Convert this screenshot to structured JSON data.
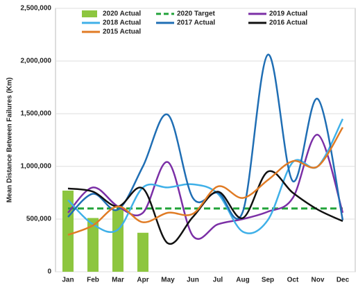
{
  "chart_data": {
    "type": "combo",
    "y_label": "Mean Distance Between Failures (Km)",
    "categories": [
      "Jan",
      "Feb",
      "Mar",
      "Apr",
      "May",
      "Jun",
      "Jul",
      "Aug",
      "Sep",
      "Oct",
      "Nov",
      "Dec"
    ],
    "ylim": [
      0,
      2500000
    ],
    "yticks": [
      0,
      {
        "value": 500000,
        "label": "500,000"
      },
      {
        "value": 1000000,
        "label": "1,000,000"
      },
      {
        "value": 1500000,
        "label": "1,500,000"
      },
      {
        "value": 2000000,
        "label": "2,000,000"
      },
      {
        "value": 2500000,
        "label": "2,500,000"
      }
    ],
    "grid": true,
    "legend": "top",
    "series": [
      {
        "name": "2020 Actual",
        "style": "bar",
        "color": "#8dc63f",
        "values": [
          770000,
          510000,
          590000,
          370000,
          null,
          null,
          null,
          null,
          null,
          null,
          null,
          null
        ]
      },
      {
        "name": "2020 Target",
        "style": "dashed",
        "color": "#22a33a",
        "values": [
          600000,
          600000,
          600000,
          600000,
          600000,
          600000,
          600000,
          600000,
          600000,
          600000,
          600000,
          600000
        ]
      },
      {
        "name": "2019 Actual",
        "style": "smooth",
        "color": "#7b2fa6",
        "values": [
          560000,
          800000,
          620000,
          560000,
          1040000,
          340000,
          450000,
          500000,
          570000,
          700000,
          1300000,
          560000
        ]
      },
      {
        "name": "2018 Actual",
        "style": "smooth",
        "color": "#3fb0e8",
        "values": [
          680000,
          450000,
          400000,
          800000,
          800000,
          830000,
          740000,
          380000,
          490000,
          1040000,
          1000000,
          1450000
        ]
      },
      {
        "name": "2017 Actual",
        "style": "smooth",
        "color": "#1f6eb4",
        "values": [
          520000,
          740000,
          590000,
          1000000,
          1490000,
          700000,
          750000,
          570000,
          2060000,
          860000,
          1640000,
          490000
        ]
      },
      {
        "name": "2016 Actual",
        "style": "smooth",
        "color": "#111111",
        "values": [
          790000,
          760000,
          620000,
          790000,
          270000,
          520000,
          760000,
          510000,
          950000,
          750000,
          590000,
          480000
        ]
      },
      {
        "name": "2015 Actual",
        "style": "smooth",
        "color": "#e07b24",
        "values": [
          350000,
          440000,
          620000,
          470000,
          560000,
          550000,
          810000,
          700000,
          870000,
          1050000,
          1000000,
          1370000
        ]
      }
    ]
  }
}
